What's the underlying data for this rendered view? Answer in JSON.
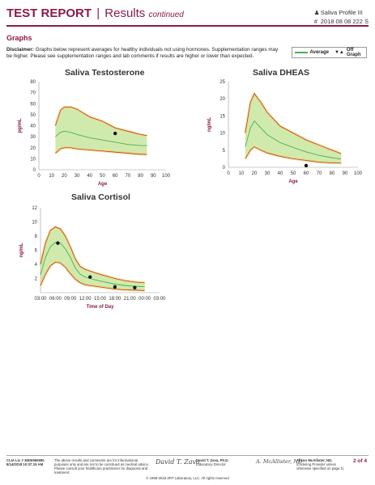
{
  "header": {
    "title_bold": "TEST REPORT",
    "separator": "|",
    "title_results": "Results",
    "title_continued": "continued",
    "profile": "Saliva Profile III",
    "report_number": "2018 08 08 222 S"
  },
  "section": {
    "title": "Graphs"
  },
  "disclaimer": {
    "label": "Disclaimer:",
    "text": "Graphs below represent averages for healthy individuals not using hormones. Supplementation ranges may be higher. Please see supplementation ranges and lab comments if results are higher or lower than expected."
  },
  "legend": {
    "average": "Average",
    "off_graph": "Off Graph"
  },
  "chart_data": [
    {
      "type": "line",
      "title": "Saliva Testosterone",
      "ylabel": "pg/mL",
      "xlabel": "Age",
      "xticks": [
        "0",
        "10",
        "20",
        "30",
        "40",
        "50",
        "60",
        "70",
        "80",
        "90",
        "100"
      ],
      "yticks": [
        "0",
        "10",
        "20",
        "30",
        "40",
        "50",
        "60",
        "70",
        "80"
      ],
      "xlim": [
        0,
        100
      ],
      "ylim": [
        0,
        80
      ],
      "band_x": [
        13,
        17,
        20,
        25,
        30,
        40,
        50,
        60,
        70,
        80,
        85
      ],
      "upper": [
        40,
        54,
        57,
        57,
        55,
        48,
        44,
        38,
        35,
        32,
        31
      ],
      "average": [
        30,
        34,
        35,
        34,
        32,
        29,
        27,
        25,
        23,
        22,
        22
      ],
      "lower": [
        15,
        19,
        20,
        20,
        19,
        18,
        17,
        16,
        15,
        14,
        14
      ],
      "patient": [
        {
          "x": 60,
          "y": 33
        }
      ]
    },
    {
      "type": "line",
      "title": "Saliva DHEAS",
      "ylabel": "ng/mL",
      "xlabel": "Age",
      "xticks": [
        "0",
        "10",
        "20",
        "30",
        "40",
        "50",
        "60",
        "70",
        "80",
        "90",
        "100"
      ],
      "yticks": [
        "0",
        "5",
        "10",
        "15",
        "20",
        "25"
      ],
      "xlim": [
        0,
        100
      ],
      "ylim": [
        0,
        25
      ],
      "band_x": [
        13,
        17,
        20,
        25,
        30,
        40,
        50,
        60,
        70,
        80,
        87
      ],
      "upper": [
        10,
        19,
        21.5,
        19,
        16,
        12,
        10,
        8,
        6.5,
        5,
        4
      ],
      "average": [
        6,
        11.5,
        13.5,
        11.5,
        9.5,
        7.2,
        5.8,
        4.5,
        3.5,
        2.8,
        2.4
      ],
      "lower": [
        2.5,
        5,
        6,
        5,
        4.2,
        3.2,
        2.5,
        2,
        1.5,
        1.3,
        1.2
      ],
      "patient": [
        {
          "x": 60,
          "y": 0.5
        }
      ]
    },
    {
      "type": "line",
      "title": "Saliva Cortisol",
      "ylabel": "ng/mL",
      "xlabel": "Time of Day",
      "xticks": [
        "03:00",
        "06:00",
        "09:00",
        "12:00",
        "15:00",
        "18:00",
        "21:00",
        "00:00",
        "03:00"
      ],
      "yticks": [
        "2",
        "4",
        "6",
        "8",
        "10",
        "12"
      ],
      "xlim": [
        3,
        27
      ],
      "ylim": [
        0,
        12
      ],
      "band_x": [
        3,
        4,
        5,
        6,
        7,
        8,
        9,
        10,
        11,
        12,
        14,
        16,
        18,
        20,
        22,
        24
      ],
      "upper": [
        4,
        7,
        8.8,
        9.3,
        9,
        8,
        6.5,
        4.8,
        3.7,
        3.3,
        2.8,
        2.4,
        2.0,
        1.7,
        1.5,
        1.4
      ],
      "average": [
        2.5,
        5,
        6.5,
        7.1,
        7,
        6.2,
        5,
        3.5,
        2.6,
        2.2,
        1.8,
        1.5,
        1.2,
        1.0,
        0.9,
        0.85
      ],
      "lower": [
        1,
        2.6,
        3.8,
        4.3,
        4.2,
        3.6,
        2.7,
        1.9,
        1.4,
        1.1,
        0.9,
        0.7,
        0.5,
        0.4,
        0.35,
        0.3
      ],
      "patient": [
        {
          "x": 6.5,
          "y": 7
        },
        {
          "x": 13,
          "y": 2.2
        },
        {
          "x": 18,
          "y": 0.8
        },
        {
          "x": 22,
          "y": 0.7
        }
      ]
    }
  ],
  "footer": {
    "clia": "CLIA Lic # 38D0960950",
    "timestamp": "8/14/2018 10:37:15 AM",
    "notice": "The above results and comments are for informational purposes only and are not to be construed as medical advice. Please consult your healthcare practitioner for diagnosis and treatment.",
    "director_name": "David T. Zava, Ph.D.",
    "director_title": "Laboratory Director",
    "director_sig": "David T. Zava",
    "provider_name": "Alison McAllister, ND.",
    "provider_note": "(Ordering Provider unless otherwise specified on page 1)",
    "provider_sig": "A. McAllister, ND",
    "page": "2 of 4",
    "copyright": "© 1998-2018 ZRT Laboratory, LLC. All rights reserved"
  }
}
